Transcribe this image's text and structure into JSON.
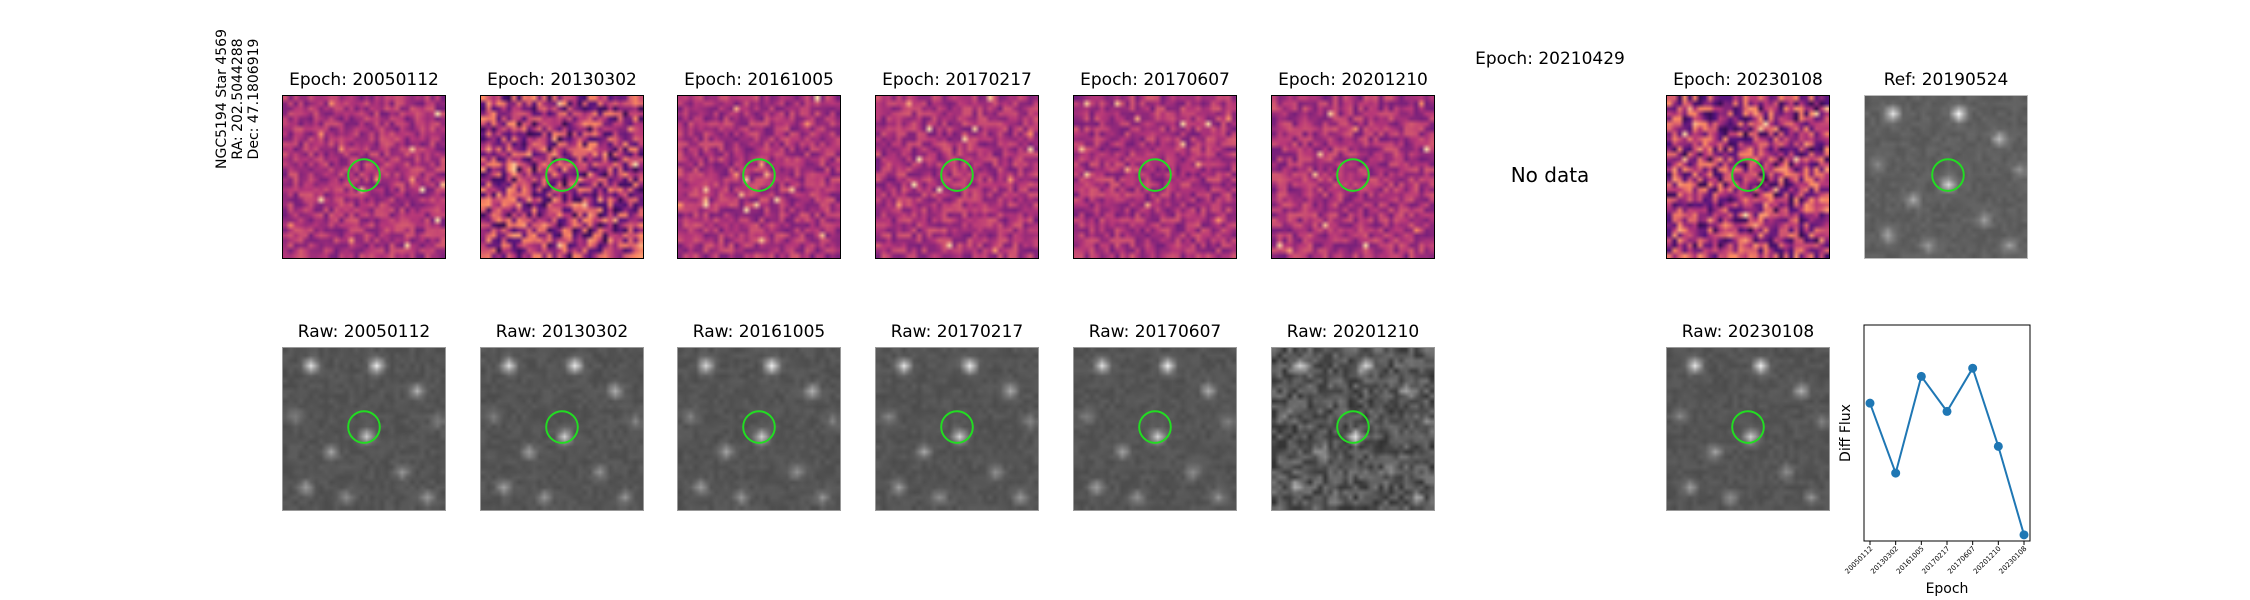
{
  "star": {
    "line1": "NGC5194 Star 4569",
    "line2": "RA: 202.5044288",
    "line3": "Dec: 47.1806919"
  },
  "diff_titles": [
    "Epoch: 20050112",
    "Epoch: 20130302",
    "Epoch: 20161005",
    "Epoch: 20170217",
    "Epoch: 20170607",
    "Epoch: 20201210",
    "Epoch: 20210429",
    "Epoch: 20230108"
  ],
  "ref_title": "Ref: 20190524",
  "raw_titles": [
    "Raw: 20050112",
    "Raw: 20130302",
    "Raw: 20161005",
    "Raw: 20170217",
    "Raw: 20170607",
    "Raw: 20201210",
    "Raw: 20230108"
  ],
  "no_data_text": "No data",
  "colors": {
    "ring": "#22dd22",
    "line": "#1f77b4"
  },
  "chart_data": {
    "type": "line",
    "x": [
      "20050112",
      "20130302",
      "20161005",
      "20170217",
      "20170607",
      "20201210",
      "20230108"
    ],
    "values": [
      0.62,
      0.28,
      0.75,
      0.58,
      0.79,
      0.41,
      -0.02
    ],
    "xlabel": "Epoch",
    "ylabel": "Diff Flux",
    "ylim": [
      -0.05,
      1.0
    ],
    "grid": false
  }
}
